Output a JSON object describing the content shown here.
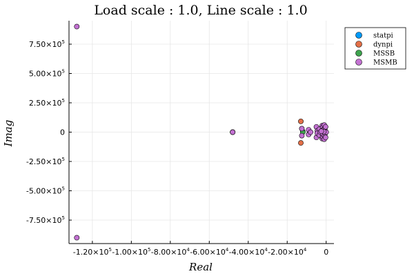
{
  "chart_data": {
    "type": "scatter",
    "title": "Load scale : 1.0,  Line scale : 1.0",
    "xlabel": "Real",
    "ylabel": "Imag",
    "xlim": [
      -132000,
      4000
    ],
    "ylim": [
      -950000,
      950000
    ],
    "x_ticks": [
      {
        "value": -120000,
        "mantissa": "-1.20×10",
        "exp": "5"
      },
      {
        "value": -100000,
        "mantissa": "-1.00×10",
        "exp": "5"
      },
      {
        "value": -80000,
        "mantissa": "-8.00×10",
        "exp": "4"
      },
      {
        "value": -60000,
        "mantissa": "-6.00×10",
        "exp": "4"
      },
      {
        "value": -40000,
        "mantissa": "-4.00×10",
        "exp": "4"
      },
      {
        "value": -20000,
        "mantissa": "-2.00×10",
        "exp": "4"
      },
      {
        "value": 0,
        "mantissa": "0",
        "exp": ""
      }
    ],
    "y_ticks": [
      {
        "value": 750000,
        "mantissa": "7.50×10",
        "exp": "5"
      },
      {
        "value": 500000,
        "mantissa": "5.00×10",
        "exp": "5"
      },
      {
        "value": 250000,
        "mantissa": "2.50×10",
        "exp": "5"
      },
      {
        "value": 0,
        "mantissa": "0",
        "exp": ""
      },
      {
        "value": -250000,
        "mantissa": "-2.50×10",
        "exp": "5"
      },
      {
        "value": -500000,
        "mantissa": "-5.00×10",
        "exp": "5"
      },
      {
        "value": -750000,
        "mantissa": "-7.50×10",
        "exp": "5"
      }
    ],
    "grid": true,
    "legend_position": "top-right",
    "series": [
      {
        "name": "statpi",
        "color": "#009AFA",
        "points": [
          [
            -48000,
            0
          ],
          [
            -12000,
            5000
          ],
          [
            -2000,
            0
          ]
        ]
      },
      {
        "name": "dynpi",
        "color": "#E36F47",
        "points": [
          [
            -13000,
            92000
          ],
          [
            -13000,
            -92000
          ],
          [
            -48000,
            0
          ],
          [
            -2000,
            0
          ]
        ]
      },
      {
        "name": "MSSB",
        "color": "#3EA44E",
        "points": [
          [
            -48000,
            0
          ],
          [
            -12000,
            0
          ],
          [
            -1500,
            0
          ]
        ]
      },
      {
        "name": "MSMB",
        "color": "#C371D2",
        "points": [
          [
            -128000,
            900000
          ],
          [
            -128000,
            -900000
          ],
          [
            -48000,
            0
          ],
          [
            -12500,
            30000
          ],
          [
            -12500,
            -30000
          ],
          [
            -9000,
            20000
          ],
          [
            -9000,
            -20000
          ],
          [
            -8000,
            0
          ],
          [
            -5000,
            45000
          ],
          [
            -5000,
            -45000
          ],
          [
            -4500,
            10000
          ],
          [
            -4500,
            -10000
          ],
          [
            -3500,
            25000
          ],
          [
            -3500,
            -25000
          ],
          [
            -3000,
            0
          ],
          [
            -2000,
            55000
          ],
          [
            -2000,
            -55000
          ],
          [
            -1800,
            40000
          ],
          [
            -1800,
            -40000
          ],
          [
            -1500,
            20000
          ],
          [
            -1500,
            -20000
          ],
          [
            -1000,
            60000
          ],
          [
            -1000,
            -60000
          ],
          [
            -800,
            30000
          ],
          [
            -800,
            -30000
          ],
          [
            -500,
            10000
          ],
          [
            -500,
            -10000
          ],
          [
            -300,
            45000
          ],
          [
            -300,
            -45000
          ],
          [
            0,
            0
          ],
          [
            -1200,
            5000
          ],
          [
            -2500,
            8000
          ]
        ]
      }
    ]
  }
}
